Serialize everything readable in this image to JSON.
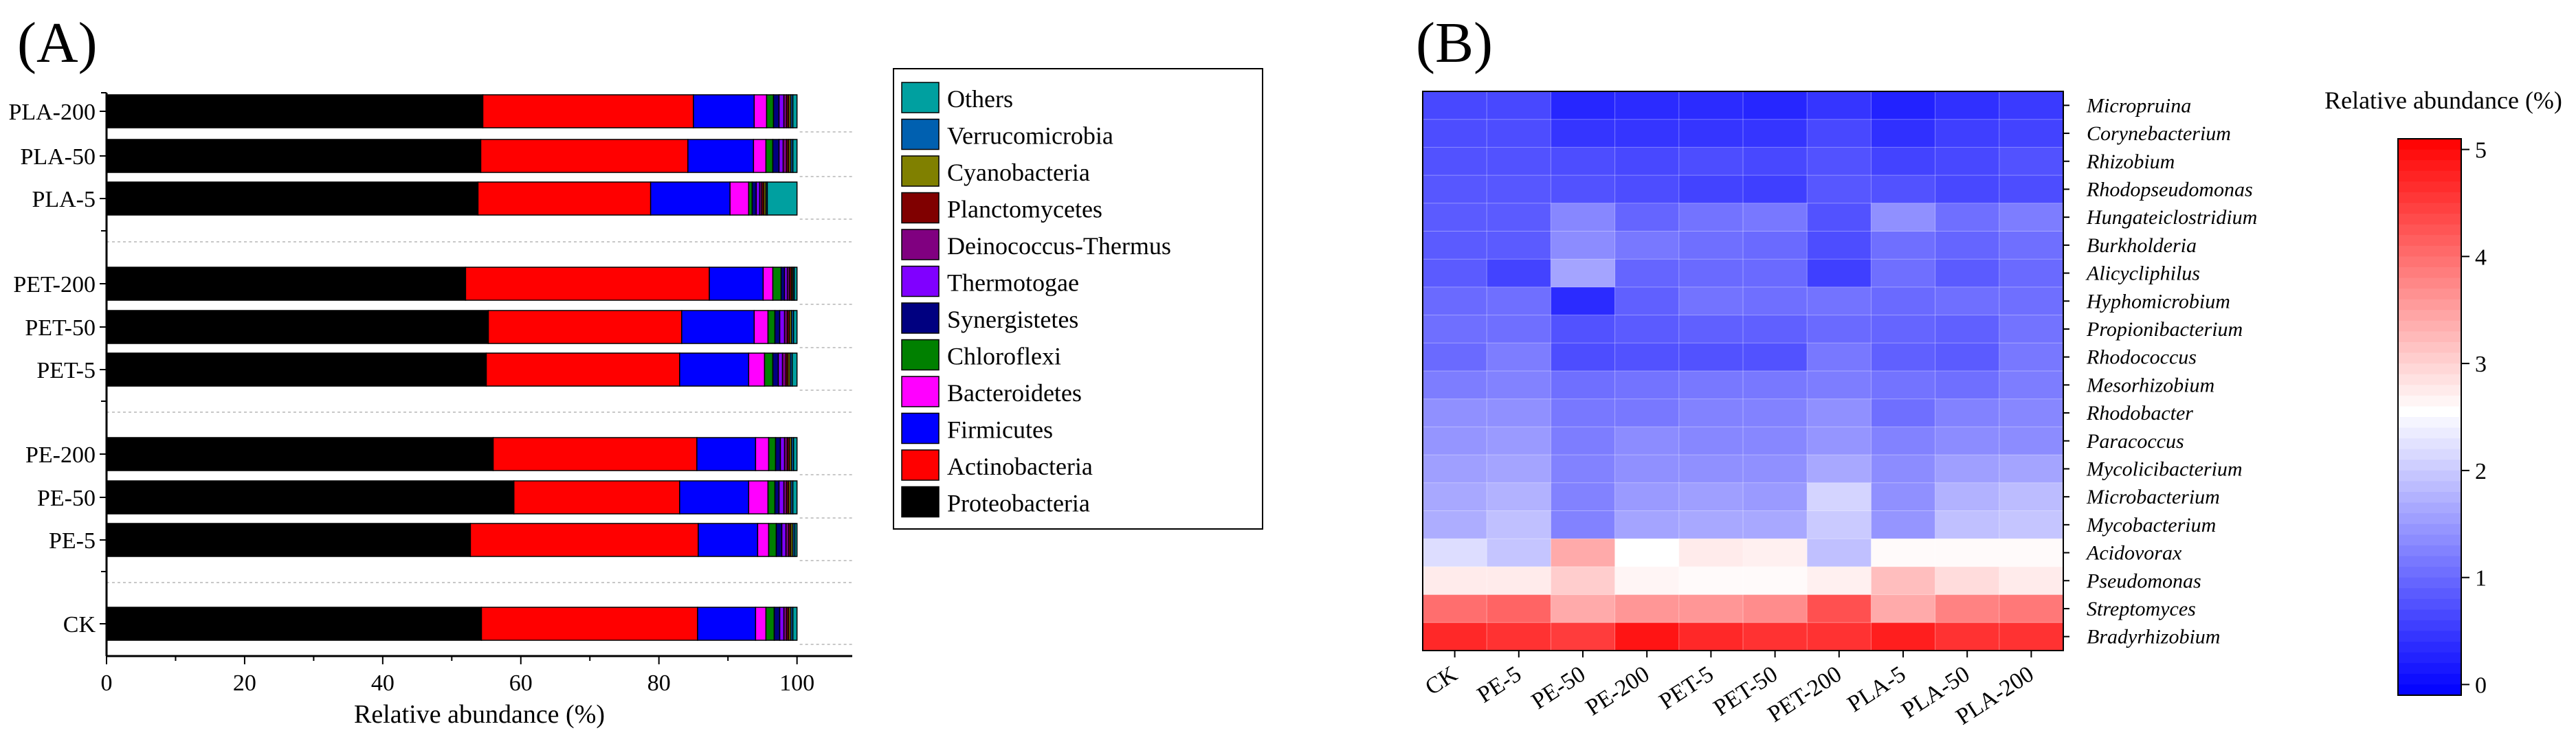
{
  "panelA": {
    "label": "(A)",
    "chart_data": {
      "type": "bar",
      "orientation": "horizontal",
      "stacked": true,
      "categories": [
        "PLA-200",
        "PLA-50",
        "PLA-5",
        "PET-200",
        "PET-50",
        "PET-5",
        "PE-200",
        "PE-50",
        "PE-5",
        "CK"
      ],
      "groups": [
        [
          "PLA-200",
          "PLA-50",
          "PLA-5"
        ],
        [
          "PET-200",
          "PET-50",
          "PET-5"
        ],
        [
          "PE-200",
          "PE-50",
          "PE-5"
        ],
        [
          "CK"
        ]
      ],
      "series": [
        {
          "name": "Proteobacteria",
          "color": "#000000",
          "values": [
            54.5,
            54.2,
            53.8,
            52.0,
            55.3,
            55.0,
            56.0,
            59.0,
            52.7,
            54.3
          ]
        },
        {
          "name": "Actinobacteria",
          "color": "#ff0000",
          "values": [
            30.5,
            30.0,
            25.0,
            35.3,
            28.0,
            28.0,
            29.5,
            24.0,
            33.0,
            31.3
          ]
        },
        {
          "name": "Firmicutes",
          "color": "#0000ff",
          "values": [
            8.8,
            9.5,
            11.5,
            7.8,
            10.5,
            10.0,
            8.5,
            10.0,
            8.6,
            8.4
          ]
        },
        {
          "name": "Bacteroidetes",
          "color": "#ff00ff",
          "values": [
            1.8,
            1.8,
            2.7,
            1.4,
            2.0,
            2.3,
            1.9,
            2.8,
            1.6,
            1.5
          ]
        },
        {
          "name": "Chloroflexi",
          "color": "#008000",
          "values": [
            1.0,
            1.0,
            0.5,
            1.2,
            1.0,
            1.2,
            1.0,
            1.0,
            1.1,
            1.2
          ]
        },
        {
          "name": "Synergistetes",
          "color": "#000080",
          "values": [
            0.8,
            0.9,
            0.6,
            0.5,
            0.7,
            0.8,
            0.7,
            0.6,
            0.8,
            0.8
          ]
        },
        {
          "name": "Thermotogae",
          "color": "#8000ff",
          "values": [
            0.7,
            0.6,
            0.5,
            0.4,
            0.7,
            0.6,
            0.6,
            0.7,
            0.6,
            0.6
          ]
        },
        {
          "name": "Deinococcus-Thermus",
          "color": "#800080",
          "values": [
            0.4,
            0.5,
            0.3,
            0.3,
            0.4,
            0.5,
            0.4,
            0.4,
            0.4,
            0.4
          ]
        },
        {
          "name": "Planctomycetes",
          "color": "#800000",
          "values": [
            0.3,
            0.3,
            0.3,
            0.3,
            0.3,
            0.3,
            0.3,
            0.3,
            0.3,
            0.3
          ]
        },
        {
          "name": "Cyanobacteria",
          "color": "#808000",
          "values": [
            0.3,
            0.3,
            0.3,
            0.2,
            0.3,
            0.3,
            0.3,
            0.3,
            0.3,
            0.3
          ]
        },
        {
          "name": "Verrucomicrobia",
          "color": "#0060b0",
          "values": [
            0.3,
            0.3,
            0.2,
            0.2,
            0.3,
            0.3,
            0.3,
            0.3,
            0.3,
            0.3
          ]
        },
        {
          "name": "Others",
          "color": "#00a0a0",
          "values": [
            0.6,
            0.6,
            4.3,
            0.4,
            0.5,
            0.7,
            0.5,
            0.6,
            0.3,
            0.6
          ]
        }
      ],
      "legend_order": [
        "Others",
        "Verrucomicrobia",
        "Cyanobacteria",
        "Planctomycetes",
        "Deinococcus-Thermus",
        "Thermotogae",
        "Synergistetes",
        "Chloroflexi",
        "Bacteroidetes",
        "Firmicutes",
        "Actinobacteria",
        "Proteobacteria"
      ],
      "xlabel": "Relative abundance (%)",
      "xlim": [
        0,
        108
      ],
      "xticks": [
        0,
        20,
        40,
        60,
        80,
        100
      ],
      "legend_position": "right"
    }
  },
  "panelB": {
    "label": "(B)",
    "chart_data": {
      "type": "heatmap",
      "x": [
        "CK",
        "PE-5",
        "PE-50",
        "PE-200",
        "PET-5",
        "PET-50",
        "PET-200",
        "PLA-5",
        "PLA-50",
        "PLA-200"
      ],
      "y": [
        "Micropruina",
        "Corynebacterium",
        "Rhizobium",
        "Rhodopseudomonas",
        "Hungateiclostridium",
        "Burkholderia",
        "Alicycliphilus",
        "Hyphomicrobium",
        "Propionibacterium",
        "Rhodococcus",
        "Mesorhizobium",
        "Rhodobacter",
        "Paracoccus",
        "Mycolicibacterium",
        "Microbacterium",
        "Mycobacterium",
        "Acidovorax",
        "Pseudomonas",
        "Streptomyces",
        "Bradyrhizobium"
      ],
      "values": [
        [
          0.65,
          0.65,
          0.3,
          0.35,
          0.35,
          0.3,
          0.45,
          0.25,
          0.4,
          0.5
        ],
        [
          0.7,
          0.7,
          0.45,
          0.45,
          0.45,
          0.45,
          0.65,
          0.4,
          0.55,
          0.6
        ],
        [
          0.75,
          0.75,
          0.7,
          0.65,
          0.7,
          0.65,
          0.75,
          0.6,
          0.65,
          0.75
        ],
        [
          0.8,
          0.8,
          0.75,
          0.7,
          0.6,
          0.55,
          0.8,
          0.75,
          0.65,
          0.7
        ],
        [
          0.85,
          0.85,
          1.3,
          0.95,
          1.1,
          1.15,
          0.75,
          1.4,
          1.05,
          1.2
        ],
        [
          0.85,
          0.85,
          1.35,
          1.15,
          1.05,
          1.0,
          0.7,
          1.05,
          0.95,
          1.05
        ],
        [
          0.85,
          0.6,
          1.6,
          0.95,
          1.0,
          1.0,
          0.55,
          1.05,
          0.85,
          1.0
        ],
        [
          1.0,
          1.05,
          0.35,
          0.9,
          1.1,
          1.05,
          1.1,
          1.0,
          1.05,
          1.05
        ],
        [
          1.05,
          1.05,
          0.75,
          0.85,
          0.9,
          0.9,
          1.0,
          0.95,
          0.9,
          1.1
        ],
        [
          1.0,
          1.2,
          0.7,
          0.75,
          0.75,
          0.75,
          1.15,
          0.9,
          0.85,
          1.15
        ],
        [
          1.2,
          1.25,
          1.05,
          1.1,
          1.15,
          1.15,
          1.2,
          1.1,
          1.05,
          1.2
        ],
        [
          1.4,
          1.4,
          1.15,
          1.15,
          1.25,
          1.25,
          1.4,
          1.05,
          1.25,
          1.3
        ],
        [
          1.45,
          1.5,
          1.2,
          1.35,
          1.3,
          1.3,
          1.45,
          1.25,
          1.35,
          1.35
        ],
        [
          1.55,
          1.6,
          1.25,
          1.4,
          1.4,
          1.4,
          1.65,
          1.35,
          1.55,
          1.6
        ],
        [
          1.65,
          1.75,
          1.25,
          1.5,
          1.55,
          1.5,
          2.1,
          1.4,
          1.75,
          1.85
        ],
        [
          1.7,
          1.9,
          1.25,
          1.6,
          1.65,
          1.65,
          2.0,
          1.45,
          1.9,
          1.95
        ],
        [
          2.2,
          1.95,
          3.4,
          2.55,
          2.75,
          2.7,
          1.9,
          2.6,
          2.6,
          2.6
        ],
        [
          2.75,
          2.75,
          3.05,
          2.65,
          2.6,
          2.6,
          2.7,
          3.2,
          2.9,
          2.75
        ],
        [
          4.0,
          4.1,
          3.4,
          3.6,
          3.6,
          3.7,
          4.3,
          3.4,
          3.8,
          3.9
        ],
        [
          4.7,
          4.6,
          4.5,
          4.9,
          4.7,
          4.6,
          4.6,
          4.8,
          4.6,
          4.6
        ]
      ],
      "colorbar": {
        "title": "Relative abundance (%)",
        "min": -0.1,
        "max": 5.1,
        "ticks": [
          0,
          1,
          2,
          3,
          4,
          5
        ],
        "low_color": "#0000ff",
        "mid_color": "#ffffff",
        "high_color": "#ff0000",
        "mid_value": 2.55
      }
    }
  }
}
